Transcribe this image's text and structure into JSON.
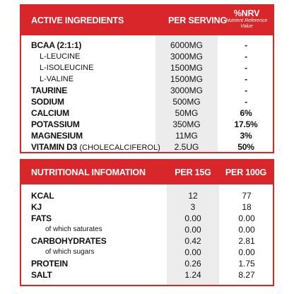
{
  "active": {
    "headers": {
      "ingredients": "ACTIVE INGREDIENTS",
      "per_serving": "PER SERVING",
      "nrv": "%NRV",
      "nrv_sub1": "Nutrient Reference",
      "nrv_sub2": "Value"
    },
    "rows": [
      {
        "label": "BCAA (2:1:1)",
        "serving": "6000MG",
        "nrv": "-"
      },
      {
        "label": "L-LEUCINE",
        "serving": "3000MG",
        "nrv": "-"
      },
      {
        "label": "L-ISOLEUCINE",
        "serving": "1500MG",
        "nrv": "-"
      },
      {
        "label": "L-VALINE",
        "serving": "1500MG",
        "nrv": "-"
      },
      {
        "label": "TAURINE",
        "serving": "3000MG",
        "nrv": "-"
      },
      {
        "label": "SODIUM",
        "serving": "500MG",
        "nrv": "-"
      },
      {
        "label": "CALCIUM",
        "serving": "50MG",
        "nrv": "6%"
      },
      {
        "label": "POTASSIUM",
        "serving": "350MG",
        "nrv": "17.5%"
      },
      {
        "label": "MAGNESIUM",
        "serving": "11MG",
        "nrv": "3%"
      },
      {
        "label": "VITAMIN D3",
        "label_extra": "(CHOLECALCIFEROL)",
        "serving": "2.5UG",
        "nrv": "50%"
      }
    ]
  },
  "nutrition": {
    "headers": {
      "info": "NUTRITIONAL INFOMATION",
      "per15": "PER 15G",
      "per100": "PER 100G"
    },
    "rows": [
      {
        "label": "KCAL",
        "per15": "12",
        "per100": "77"
      },
      {
        "label": "KJ",
        "per15": "3",
        "per100": "18"
      },
      {
        "label": "FATS",
        "per15": "0.00",
        "per100": "0.00"
      },
      {
        "label": "of which saturates",
        "per15": "0.00",
        "per100": "0.00"
      },
      {
        "label": "CARBOHYDRATES",
        "per15": "0.42",
        "per100": "2.81"
      },
      {
        "label": "of which sugars",
        "per15": "0.00",
        "per100": "0.00"
      },
      {
        "label": "PROTEIN",
        "per15": "0.26",
        "per100": "1.75"
      },
      {
        "label": "SALT",
        "per15": "1.24",
        "per100": "8.27"
      }
    ]
  },
  "colors": {
    "brand_red": "#d8262b",
    "shade_gray": "#ececec"
  }
}
